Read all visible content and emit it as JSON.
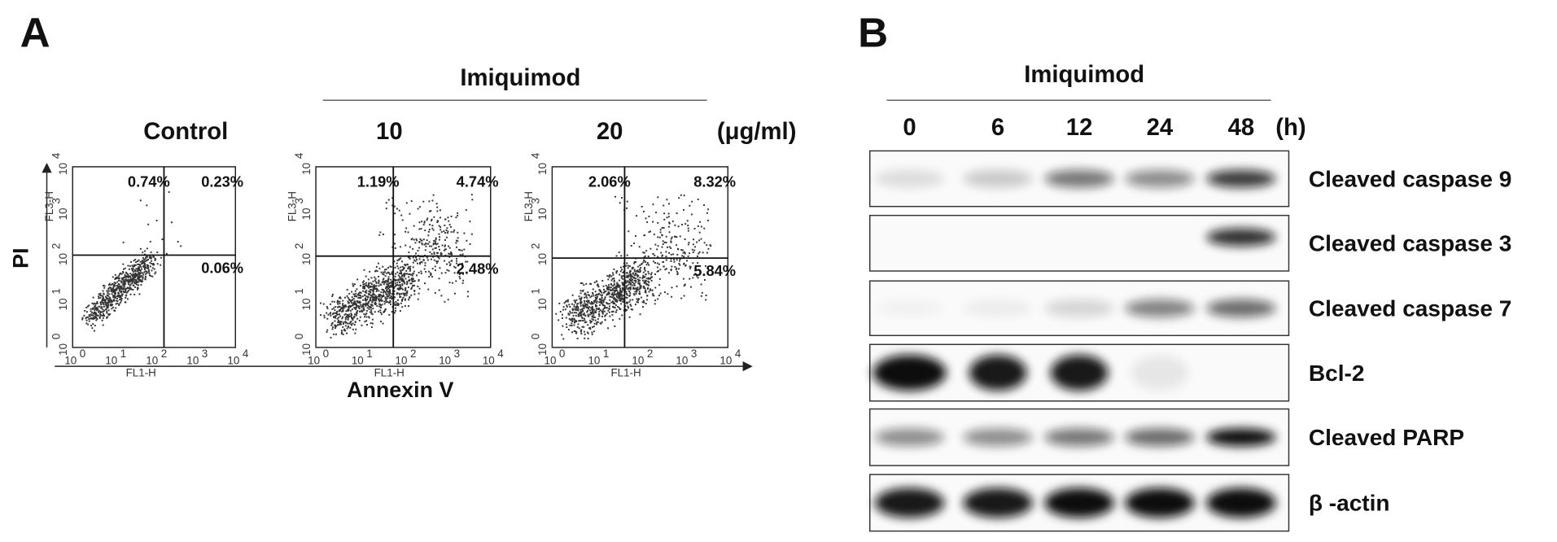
{
  "panel_a": {
    "label": "A",
    "treatment": "Imiquimod",
    "unit": "(μg/ml)",
    "y_axis": "PI",
    "x_axis": "Annexin V",
    "plot_x_label": "FL1-H",
    "plot_y_label": "FL3-H",
    "log_base": "10",
    "log_exponents": [
      "0",
      "1",
      "2",
      "3",
      "4"
    ],
    "plots": [
      {
        "title": "Control",
        "upper_left": "0.74%",
        "upper_right": "0.23%",
        "lower_right": "0.06%"
      },
      {
        "title": "10",
        "upper_left": "1.19%",
        "upper_right": "4.74%",
        "lower_right": "2.48%"
      },
      {
        "title": "20",
        "upper_left": "2.06%",
        "upper_right": "8.32%",
        "lower_right": "5.84%"
      }
    ]
  },
  "panel_b": {
    "label": "B",
    "treatment": "Imiquimod",
    "timepoints": [
      "0",
      "6",
      "12",
      "24",
      "48"
    ],
    "unit": "(h)",
    "rows": [
      "Cleaved caspase 9",
      "Cleaved caspase 3",
      "Cleaved caspase 7",
      "Bcl-2",
      "Cleaved PARP",
      "β -actin"
    ]
  }
}
